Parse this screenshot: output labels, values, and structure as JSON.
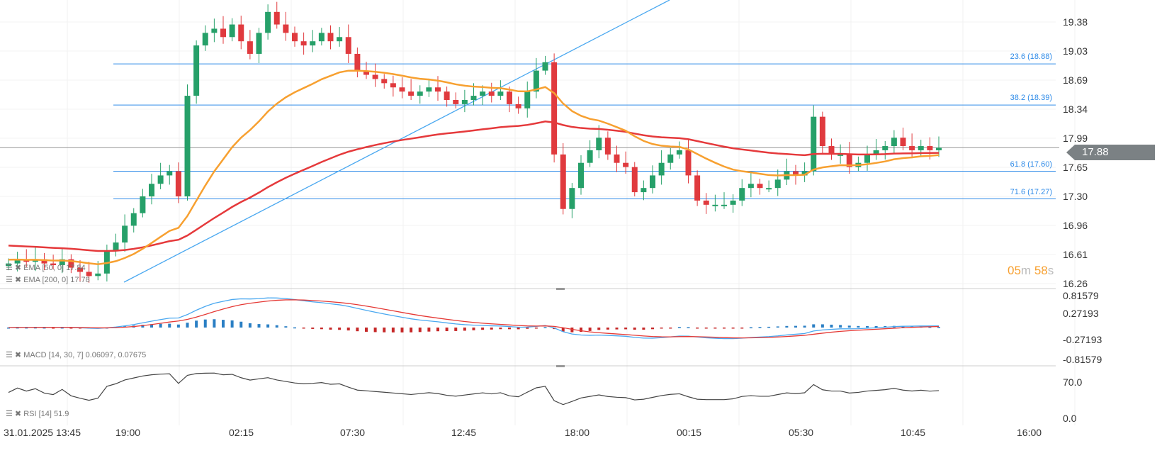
{
  "chart_data": {
    "type": "candlestick",
    "symbol_price": "17.88",
    "price_axis": [
      "19.38",
      "19.03",
      "18.69",
      "18.34",
      "17.99",
      "17.65",
      "17.30",
      "16.96",
      "16.61",
      "16.26"
    ],
    "ylim": [
      16.26,
      19.38
    ],
    "time_axis": [
      "31.01.2025  13:45",
      "19:00",
      "02:15",
      "07:30",
      "12:45",
      "18:00",
      "00:15",
      "05:30",
      "10:45",
      "16:00"
    ],
    "closes": [
      16.5,
      16.55,
      16.52,
      16.55,
      16.5,
      16.48,
      16.55,
      16.45,
      16.4,
      16.35,
      16.38,
      16.65,
      16.75,
      16.95,
      17.1,
      17.3,
      17.45,
      17.55,
      17.6,
      17.3,
      18.5,
      19.1,
      19.25,
      19.3,
      19.2,
      19.35,
      19.15,
      19.0,
      19.25,
      19.5,
      19.35,
      19.25,
      19.15,
      19.1,
      19.15,
      19.25,
      19.15,
      19.2,
      19.0,
      18.8,
      18.75,
      18.7,
      18.65,
      18.6,
      18.55,
      18.5,
      18.55,
      18.6,
      18.55,
      18.45,
      18.4,
      18.45,
      18.5,
      18.55,
      18.5,
      18.55,
      18.4,
      18.35,
      18.55,
      18.8,
      18.9,
      17.8,
      17.15,
      17.4,
      17.7,
      17.85,
      18.0,
      17.8,
      17.7,
      17.65,
      17.35,
      17.4,
      17.55,
      17.7,
      17.8,
      17.85,
      17.55,
      17.25,
      17.2,
      17.2,
      17.2,
      17.25,
      17.4,
      17.45,
      17.4,
      17.4,
      17.5,
      17.6,
      17.55,
      17.6,
      18.25,
      17.9,
      17.8,
      17.8,
      17.65,
      17.7,
      17.8,
      17.85,
      17.9,
      18.0,
      17.9,
      17.85,
      17.9,
      17.85,
      17.88
    ],
    "ema50_seed": 16.55,
    "ema200_seed": 16.72,
    "fib_levels": [
      {
        "label": "23.6 (18.88)",
        "price": 18.88
      },
      {
        "label": "38.2 (18.39)",
        "price": 18.39
      },
      {
        "label": "61.8 (17.60)",
        "price": 17.6
      },
      {
        "label": "71.6 (17.27)",
        "price": 17.27
      }
    ],
    "macd": {
      "label": "MACD  [14, 30, 7]  0.06097,  0.07675",
      "axis": [
        "0.81579",
        "0.27193",
        "-0.27193",
        "-0.81579"
      ],
      "range": [
        -0.81579,
        0.81579
      ]
    },
    "rsi": {
      "label": "RSI  [14]  51.9",
      "axis": [
        "70.0",
        "0.0"
      ]
    },
    "legend": {
      "ema50": "EMA  [50, 0]  17.84",
      "ema200": "EMA  [200, 0]  17.78"
    },
    "colors": {
      "up": "#26a069",
      "down": "#e03a3e",
      "ema50": "#f7a030",
      "ema200": "#e5393b",
      "fib": "#2f8be8"
    }
  },
  "timer": {
    "min": "05",
    "m": "m",
    "sec": "58",
    "s": "s"
  }
}
